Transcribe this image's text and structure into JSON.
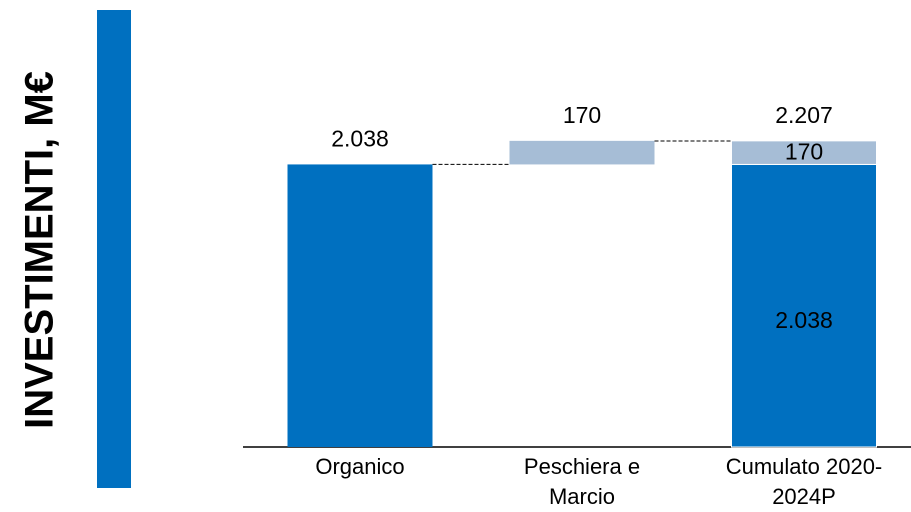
{
  "chart_data": {
    "type": "waterfall",
    "ylabel": "INVESTIMENTI, M€",
    "categories": [
      "Organico",
      "Peschiera e Marcio",
      "Cumulato 2020-2024P"
    ],
    "values": [
      2038,
      170,
      2207
    ],
    "value_labels": [
      "2.038",
      "170",
      "2.207"
    ],
    "colors": [
      "#0070c0",
      "#a6bdd6"
    ],
    "total_segments": {
      "values": [
        2038,
        170
      ],
      "value_labels": [
        "2.038",
        "170"
      ]
    }
  }
}
